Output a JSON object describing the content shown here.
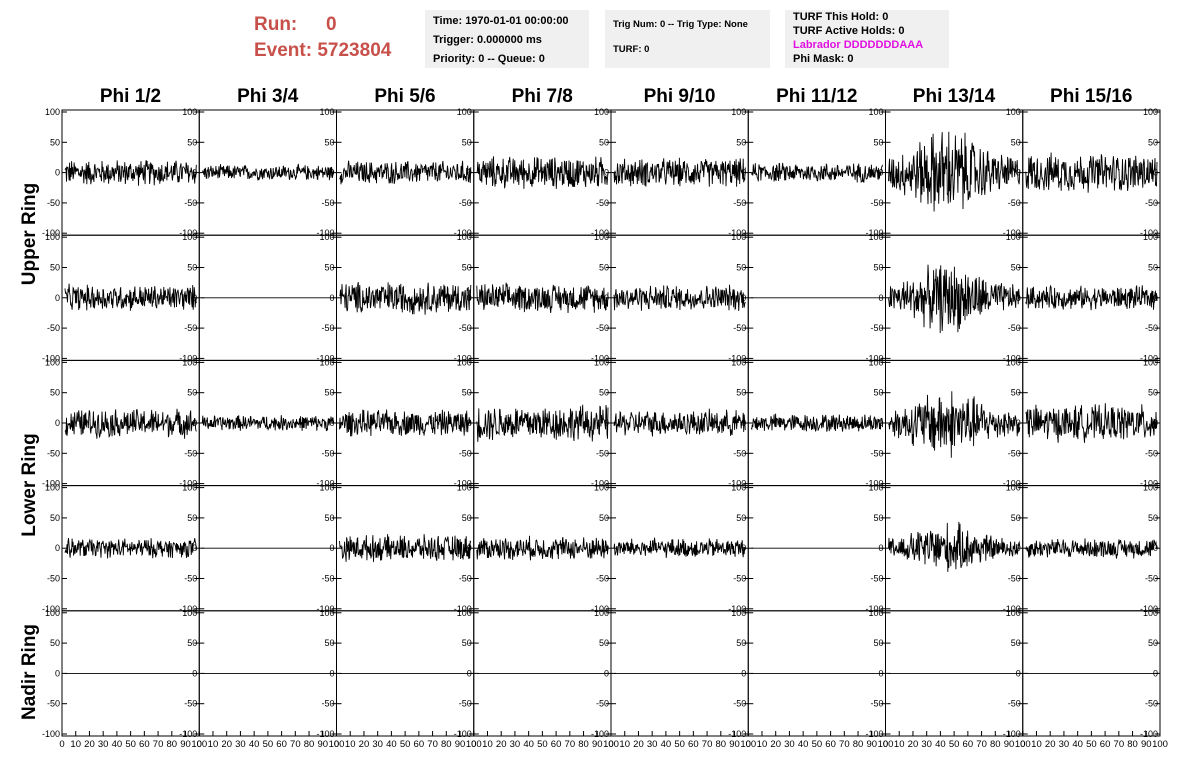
{
  "header": {
    "run_label": "Run:",
    "run_value": "0",
    "event_label": "Event:",
    "event_value": "5723804"
  },
  "info_boxes": {
    "time": "Time: 1970-01-01 00:00:00",
    "trigger": "Trigger: 0.000000 ms",
    "priority": "Priority: 0 -- Queue: 0",
    "trig_num": "Trig Num: 0 -- Trig Type: None",
    "turf": "TURF: 0",
    "turf_hold": "TURF This Hold: 0",
    "turf_active": "TURF Active Holds: 0",
    "labrador": "Labrador DDDDDDDAAA",
    "phi_mask": "Phi Mask: 0",
    "labrador_color": "#e010e0"
  },
  "columns": [
    "Phi 1/2",
    "Phi 3/4",
    "Phi 5/6",
    "Phi 7/8",
    "Phi 9/10",
    "Phi 11/12",
    "Phi 13/14",
    "Phi 15/16"
  ],
  "rings": [
    "Upper Ring",
    "Lower Ring",
    "Nadir Ring"
  ],
  "axes": {
    "y_ticks": [
      "100",
      "50",
      "0",
      "-50",
      "-100"
    ],
    "x_ticks": [
      "0",
      "10",
      "20",
      "30",
      "40",
      "50",
      "60",
      "70",
      "80",
      "90",
      "100"
    ]
  },
  "panel_amplitude": [
    [
      20,
      12,
      18,
      25,
      22,
      15,
      70,
      30
    ],
    [
      20,
      0,
      25,
      22,
      20,
      0,
      55,
      18
    ],
    [
      22,
      12,
      20,
      28,
      20,
      14,
      55,
      28
    ],
    [
      15,
      0,
      20,
      18,
      15,
      0,
      40,
      15
    ],
    [
      0,
      0,
      0,
      0,
      0,
      0,
      0,
      0
    ]
  ],
  "panel_envelope": [
    [
      "flat",
      "flat",
      "flat",
      "flat",
      "flat",
      "flat",
      "burst",
      "flat"
    ],
    [
      "flat",
      "flat",
      "flat",
      "flat",
      "flat",
      "flat",
      "burst",
      "flat"
    ],
    [
      "flat",
      "flat",
      "flat",
      "flat",
      "flat",
      "flat",
      "burst",
      "flat"
    ],
    [
      "flat",
      "flat",
      "flat",
      "flat",
      "flat",
      "flat",
      "burst",
      "flat"
    ],
    [
      "flat",
      "flat",
      "flat",
      "flat",
      "flat",
      "flat",
      "flat",
      "flat"
    ]
  ]
}
